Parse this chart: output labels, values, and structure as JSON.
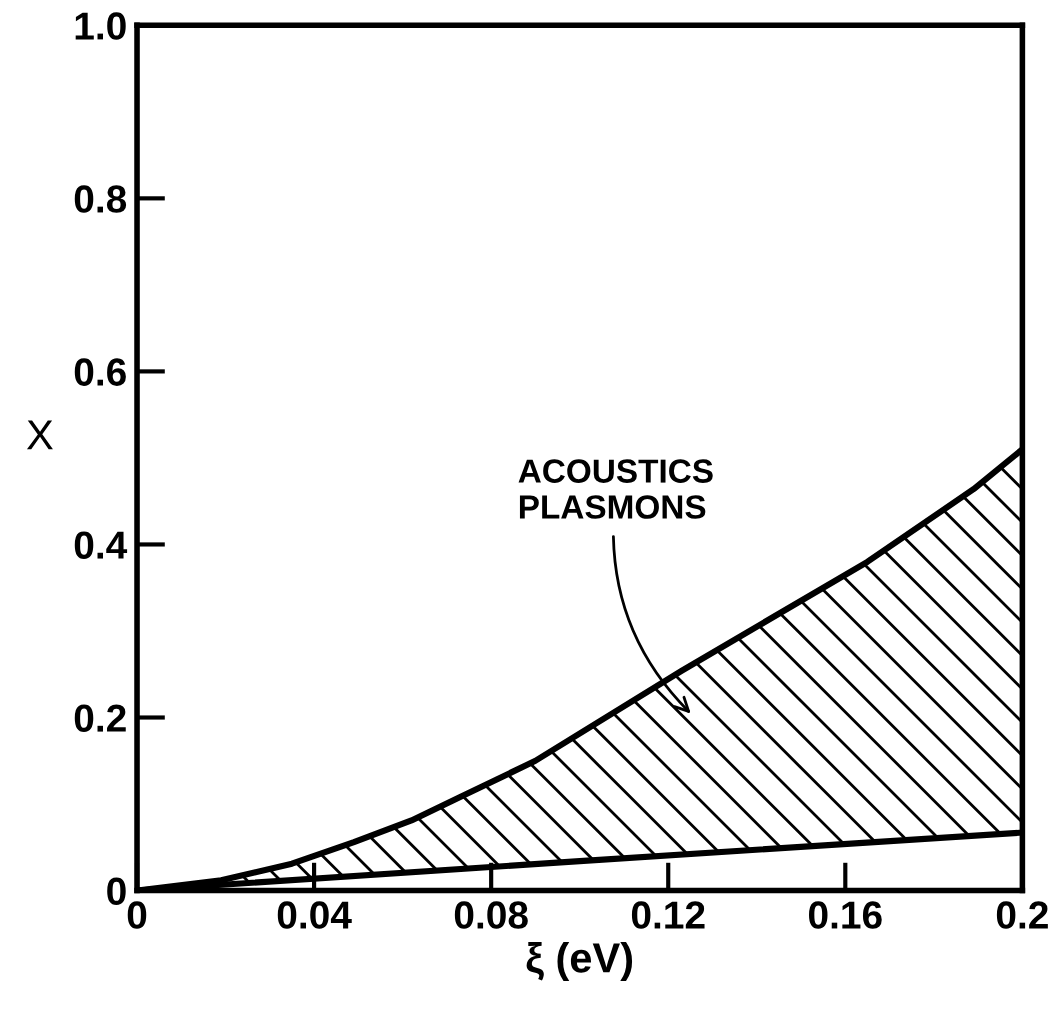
{
  "chart_data": {
    "type": "line",
    "xlabel": "ξ (eV)",
    "ylabel": "X",
    "xlim": [
      0,
      0.2
    ],
    "ylim": [
      0,
      1.0
    ],
    "xticks": [
      0,
      0.04,
      0.08,
      0.12,
      0.16,
      0.2
    ],
    "yticks": [
      0,
      0.2,
      0.4,
      0.6,
      0.8,
      {
        "value": 1,
        "label": "1.0"
      }
    ],
    "grid": false,
    "legend": false,
    "marker": "none",
    "line_style": "solid",
    "series": [
      {
        "color": "#000000",
        "x": [
          0,
          0.019,
          0.035,
          0.049,
          0.062,
          0.073,
          0.09,
          0.123,
          0.165,
          0.189,
          0.2
        ],
        "values": [
          0,
          0.012,
          0.031,
          0.056,
          0.081,
          0.108,
          0.15,
          0.254,
          0.38,
          0.464,
          0.51
        ]
      },
      {
        "color": "#000000",
        "x": [
          0,
          0.02,
          0.1,
          0.2
        ],
        "values": [
          0,
          0.007,
          0.034,
          0.067
        ]
      }
    ],
    "annotations": [
      "ACOUSTICS\nPLASMONS"
    ]
  }
}
